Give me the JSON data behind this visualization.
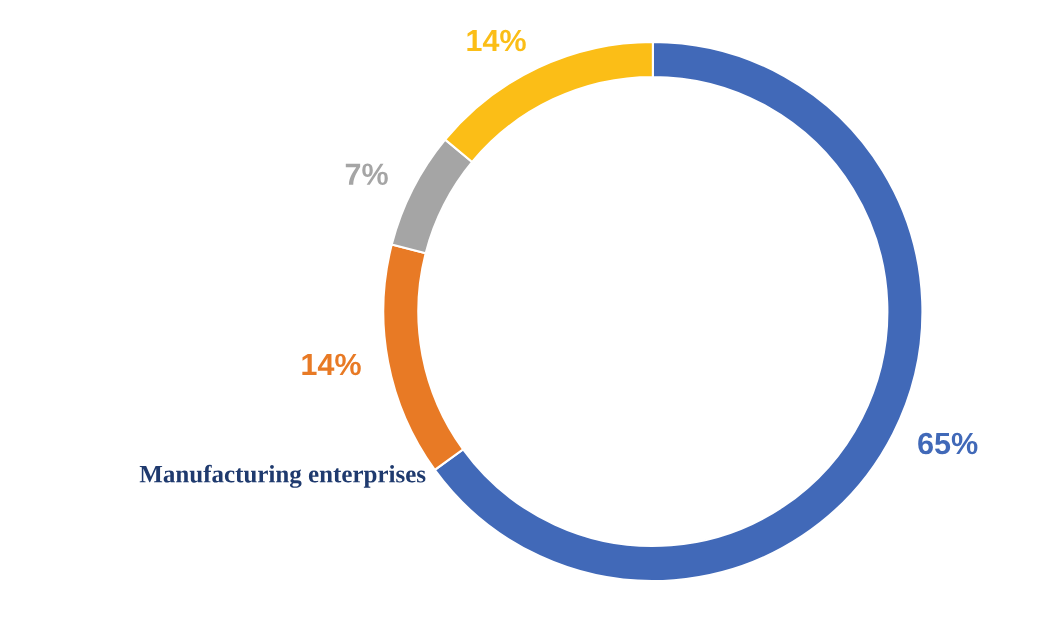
{
  "chart_data": {
    "type": "donut",
    "categories": [
      "Manufacturing enterprises",
      null,
      null,
      null
    ],
    "values": [
      65,
      14,
      7,
      14
    ],
    "colors": [
      "#4169b8",
      "#e87a25",
      "#a5a5a5",
      "#fbbe17"
    ],
    "value_labels": [
      "65%",
      "14%",
      "7%",
      "14%"
    ],
    "legend": false
  }
}
